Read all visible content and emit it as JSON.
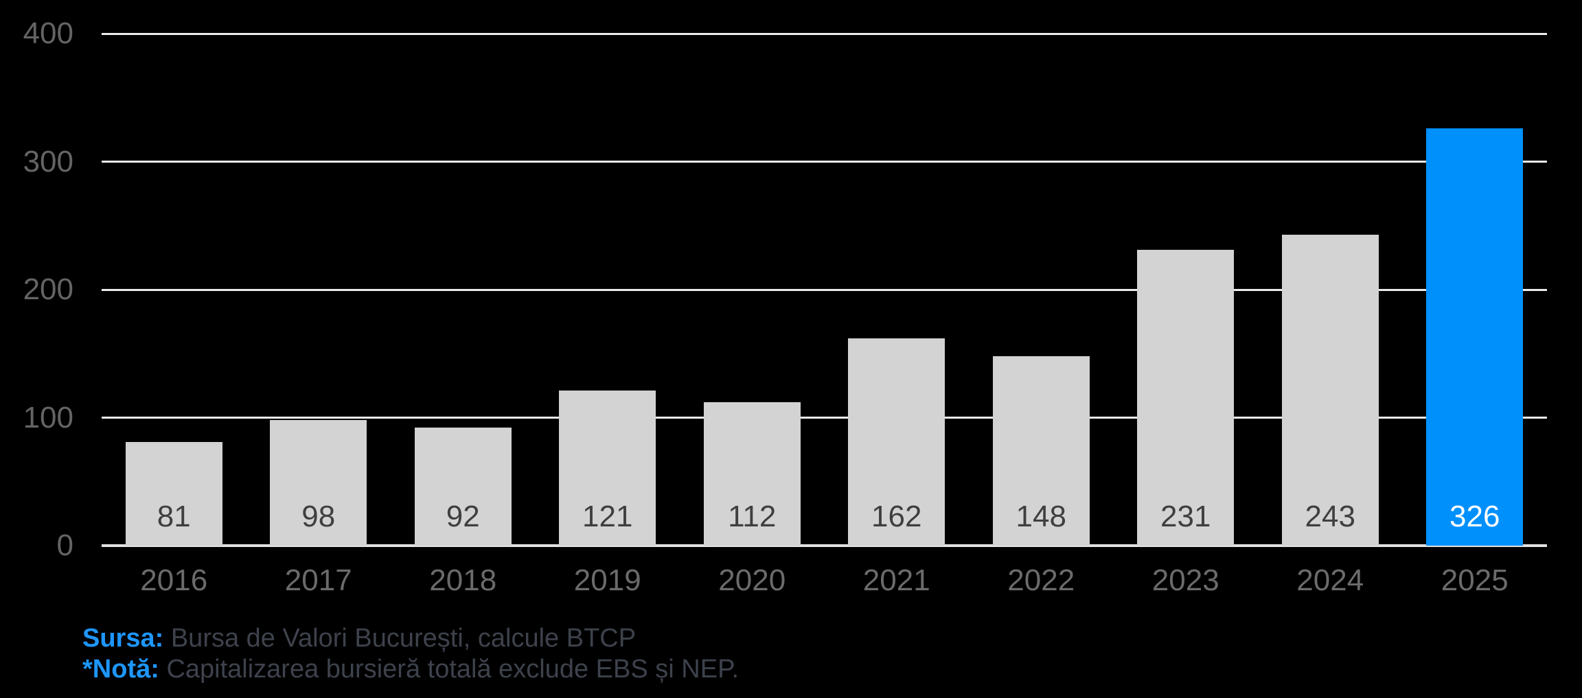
{
  "chart_data": {
    "type": "bar",
    "categories": [
      "2016",
      "2017",
      "2018",
      "2019",
      "2020",
      "2021",
      "2022",
      "2023",
      "2024",
      "2025"
    ],
    "values": [
      81,
      98,
      92,
      121,
      112,
      162,
      148,
      231,
      243,
      326
    ],
    "value_labels": [
      "81",
      "98",
      "92",
      "121",
      "112",
      "162",
      "148",
      "231",
      "243",
      "326"
    ],
    "highlight_index": 9,
    "title": "",
    "xlabel": "",
    "ylabel": "",
    "ylim": [
      0,
      400
    ],
    "yticks": [
      0,
      100,
      200,
      300,
      400
    ],
    "ytick_labels": [
      "0",
      "100",
      "200",
      "300",
      "400"
    ],
    "grid": true,
    "legend": "none",
    "colors": {
      "bar": "#d3d3d3",
      "highlight_bar": "#0090fc",
      "value_label": "#3f3f3f",
      "highlight_value_label": "#ffffff",
      "gridline": "#ececec",
      "baseline": "#e2e2e2",
      "ytick_label": "#646464",
      "xtick_label": "#6b6b6b",
      "background": "#000000"
    }
  },
  "footer": {
    "source_label": "Sursa:",
    "source_text": " Bursa de Valori București, calcule BTCP",
    "note_label": "*Notă:",
    "note_text": " Capitalizarea bursieră totală exclude EBS și NEP.",
    "label_color": "#1e96ff",
    "text_color": "#3d424c"
  }
}
